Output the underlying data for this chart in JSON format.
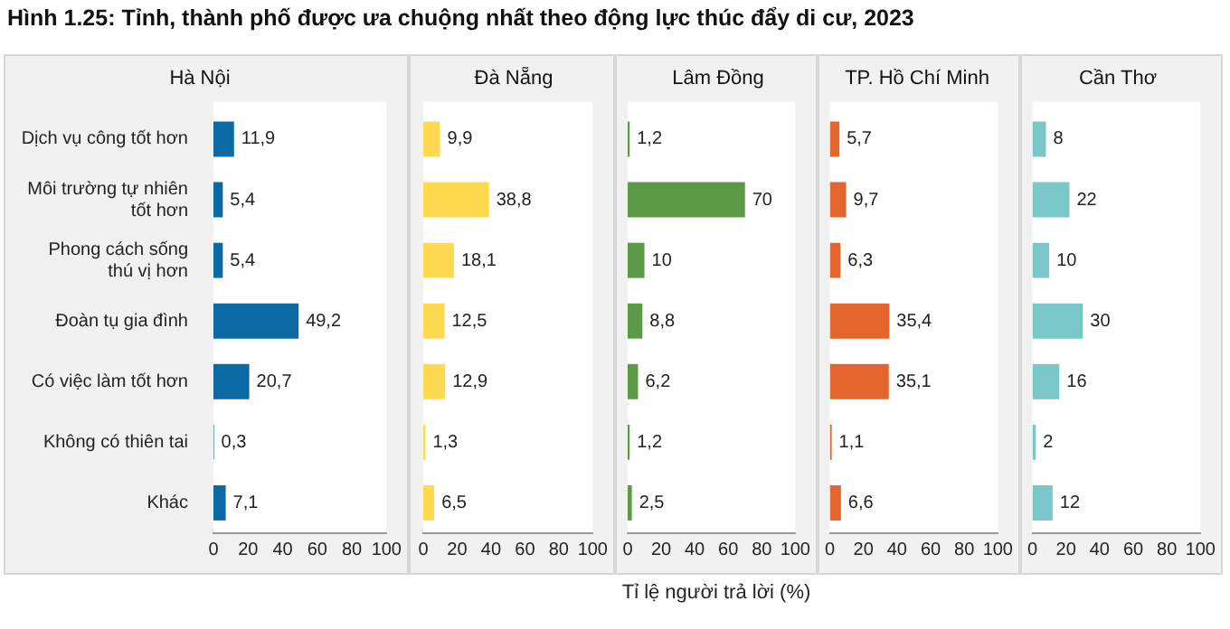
{
  "chart_data": [
    {
      "type": "bar",
      "orientation": "horizontal",
      "title": "Hà Nội",
      "annotations": [
        "Hình 1.25: Tỉnh, thành phố được ưa chuộng nhất theo động lực thúc đẩy di cư, 2023"
      ],
      "categories": [
        "Dịch vụ công tốt hơn",
        "Môi trường tự nhiên tốt hơn",
        "Phong cách sống thú vị hơn",
        "Đoàn tụ gia đình",
        "Có việc làm tốt hơn",
        "Không có thiên tai",
        "Khác"
      ],
      "values": [
        11.9,
        5.4,
        5.4,
        49.2,
        20.7,
        0.3,
        7.1
      ],
      "value_labels": [
        "11,9",
        "5,4",
        "5,4",
        "49,2",
        "20,7",
        "0,3",
        "7,1"
      ],
      "color": "#0b69a3",
      "xlim": [
        0,
        100
      ],
      "xticks": [
        0,
        20,
        40,
        60,
        80,
        100
      ]
    },
    {
      "type": "bar",
      "orientation": "horizontal",
      "title": "Đà Nẵng",
      "categories": [
        null,
        null,
        null,
        null,
        null,
        null,
        null
      ],
      "values": [
        9.9,
        38.8,
        18.1,
        12.5,
        12.9,
        1.3,
        6.5
      ],
      "value_labels": [
        "9,9",
        "38,8",
        "18,1",
        "12,5",
        "12,9",
        "1,3",
        "6,5"
      ],
      "color": "#ffd94f",
      "xlim": [
        0,
        100
      ],
      "xticks": [
        0,
        20,
        40,
        60,
        80,
        100
      ],
      "tick_labels": "x"
    },
    {
      "type": "bar",
      "orientation": "horizontal",
      "title": "Lâm Đồng",
      "xlabel": "Tỉ lệ người trả lời (%)",
      "categories": [
        null,
        null,
        null,
        null,
        null,
        null,
        null
      ],
      "values": [
        1.2,
        70,
        10,
        8.8,
        6.2,
        1.2,
        2.5
      ],
      "value_labels": [
        "1,2",
        "70",
        "10",
        "8,8",
        "6,2",
        "1,2",
        "2,5"
      ],
      "color": "#5c9a47",
      "xlim": [
        0,
        100
      ],
      "xticks": [
        0,
        20,
        40,
        60,
        80,
        100
      ],
      "tick_labels": "x"
    },
    {
      "type": "bar",
      "orientation": "horizontal",
      "title": "TP. Hồ Chí Minh",
      "categories": [
        null,
        null,
        null,
        null,
        null,
        null,
        null
      ],
      "values": [
        5.7,
        9.7,
        6.3,
        35.4,
        35.1,
        1.1,
        6.6
      ],
      "value_labels": [
        "5,7",
        "9,7",
        "6,3",
        "35,4",
        "35,1",
        "1,1",
        "6,6"
      ],
      "color": "#e2662d",
      "xlim": [
        0,
        100
      ],
      "xticks": [
        0,
        20,
        40,
        60,
        80,
        100
      ],
      "tick_labels": "x"
    },
    {
      "type": "bar",
      "orientation": "horizontal",
      "title": "Cần Thơ",
      "categories": [
        null,
        null,
        null,
        null,
        null,
        null,
        null
      ],
      "values": [
        8,
        22,
        10,
        30,
        16,
        2,
        12
      ],
      "value_labels": [
        "8",
        "22",
        "10",
        "30",
        "16",
        "2",
        "12"
      ],
      "color": "#7ac7c7",
      "xlim": [
        0,
        100
      ],
      "xticks": [
        0,
        20,
        40,
        60,
        80,
        100
      ],
      "tick_labels": "x"
    }
  ]
}
